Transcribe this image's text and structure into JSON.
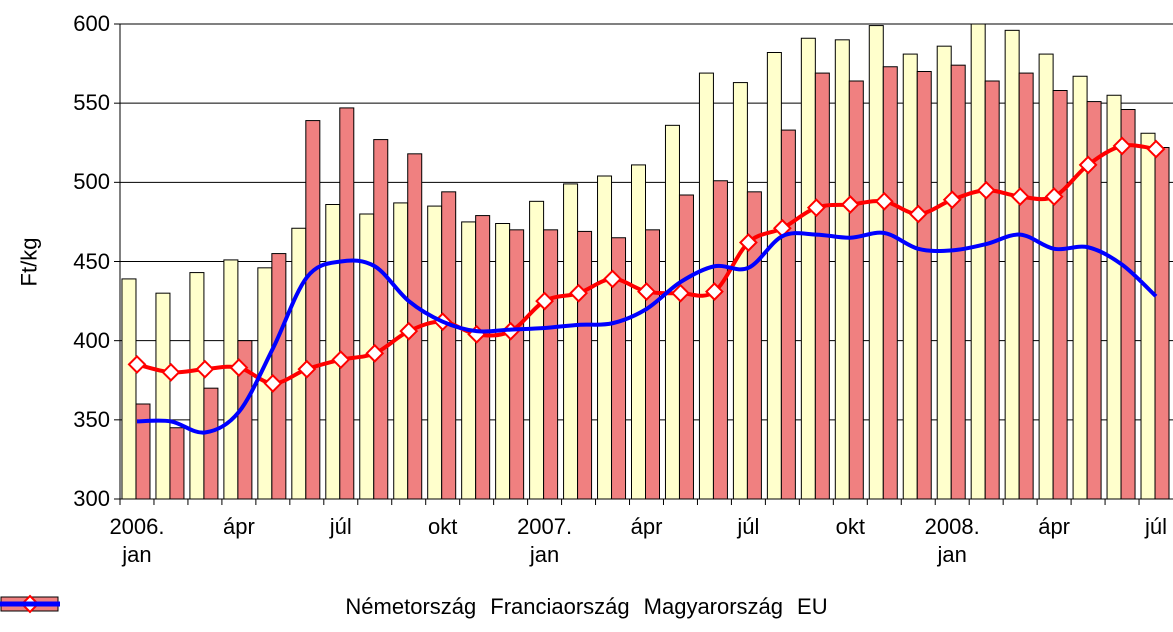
{
  "chart_data": {
    "type": "bar",
    "ylabel": "Ft/kg",
    "categories": [
      "2006.\njan",
      null,
      null,
      "ápr",
      null,
      null,
      "júl",
      null,
      null,
      "okt",
      null,
      null,
      "2007.\njan",
      null,
      null,
      "ápr",
      null,
      null,
      "júl",
      null,
      null,
      "okt",
      null,
      null,
      "2008.\njan",
      null,
      null,
      "ápr",
      null,
      null,
      "júl"
    ],
    "ylim": [
      300,
      600
    ],
    "yticks": [
      300,
      350,
      400,
      450,
      500,
      550,
      600
    ],
    "grid": true,
    "legend": "bottom",
    "series": [
      {
        "name": "Németország",
        "type": "bar",
        "color": "#ffffcc",
        "values": [
          439,
          430,
          443,
          451,
          446,
          471,
          486,
          480,
          487,
          485,
          475,
          474,
          488,
          499,
          504,
          511,
          536,
          569,
          563,
          582,
          591,
          590,
          599,
          581,
          586,
          600,
          596,
          581,
          567,
          555,
          531
        ]
      },
      {
        "name": "Franciaország",
        "type": "bar",
        "color": "#f08080",
        "values": [
          360,
          345,
          370,
          400,
          455,
          539,
          547,
          527,
          518,
          494,
          479,
          470,
          470,
          469,
          465,
          470,
          492,
          501,
          494,
          533,
          569,
          564,
          573,
          570,
          574,
          564,
          569,
          558,
          551,
          546,
          522
        ]
      },
      {
        "name": "Magyarország",
        "type": "line",
        "marker": "diamond",
        "color": "#ff0000",
        "values": [
          385,
          380,
          382,
          383,
          373,
          382,
          388,
          392,
          406,
          412,
          404,
          406,
          425,
          430,
          439,
          431,
          430,
          431,
          462,
          471,
          484,
          486,
          488,
          480,
          489,
          495,
          491,
          491,
          511,
          523,
          521
        ]
      },
      {
        "name": "EU",
        "type": "line",
        "color": "#0000ff",
        "values": [
          349,
          349,
          342,
          355,
          395,
          440,
          450,
          447,
          425,
          412,
          406,
          407,
          408,
          410,
          411,
          420,
          437,
          447,
          446,
          466,
          467,
          465,
          468,
          458,
          457,
          461,
          467,
          458,
          459,
          448,
          428
        ]
      }
    ]
  }
}
